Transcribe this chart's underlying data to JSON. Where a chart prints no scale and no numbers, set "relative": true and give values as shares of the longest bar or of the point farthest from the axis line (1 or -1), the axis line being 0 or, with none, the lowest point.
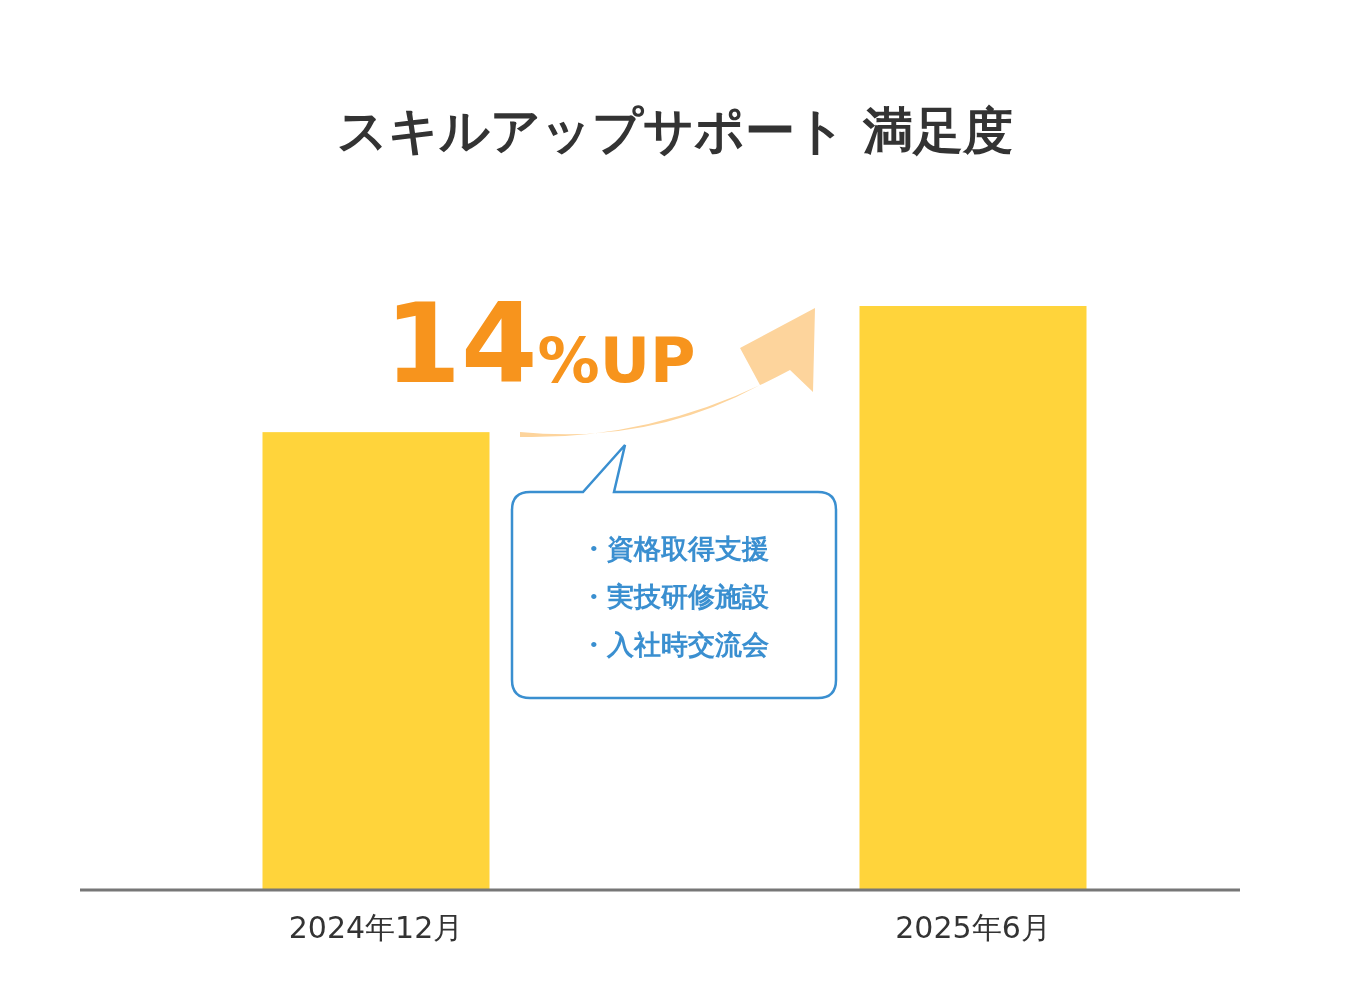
{
  "chart_data": {
    "type": "bar",
    "title": "スキルアップサポート 満足度",
    "categories": [
      "2024年12月",
      "2025年6月"
    ],
    "values": [
      0.784,
      1
    ],
    "relative": true,
    "color": "#ffd43b",
    "annotations": [
      "14%UP",
      "・資格取得支援",
      "・実技研修施設",
      "・入社時交流会"
    ]
  }
}
